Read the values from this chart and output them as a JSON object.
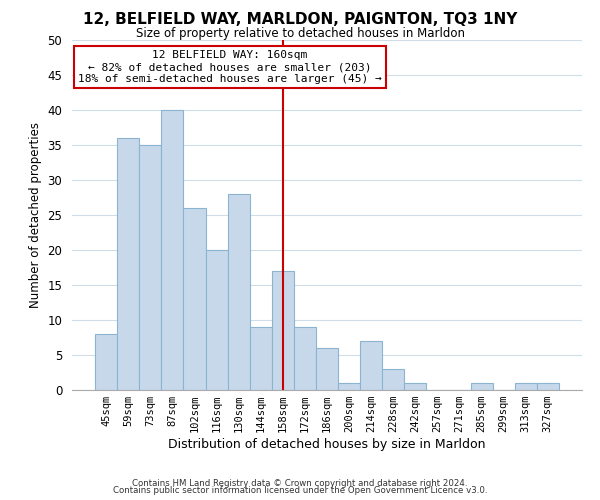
{
  "title": "12, BELFIELD WAY, MARLDON, PAIGNTON, TQ3 1NY",
  "subtitle": "Size of property relative to detached houses in Marldon",
  "xlabel": "Distribution of detached houses by size in Marldon",
  "ylabel": "Number of detached properties",
  "bar_labels": [
    "45sqm",
    "59sqm",
    "73sqm",
    "87sqm",
    "102sqm",
    "116sqm",
    "130sqm",
    "144sqm",
    "158sqm",
    "172sqm",
    "186sqm",
    "200sqm",
    "214sqm",
    "228sqm",
    "242sqm",
    "257sqm",
    "271sqm",
    "285sqm",
    "299sqm",
    "313sqm",
    "327sqm"
  ],
  "bar_values": [
    8,
    36,
    35,
    40,
    26,
    20,
    28,
    9,
    17,
    9,
    6,
    1,
    7,
    3,
    1,
    0,
    0,
    1,
    0,
    1,
    1
  ],
  "bar_color": "#c8d8eb",
  "bar_edge_color": "#8ab4d0",
  "reference_line_index": 8,
  "reference_line_color": "#cc0000",
  "annotation_title": "12 BELFIELD WAY: 160sqm",
  "annotation_line1": "← 82% of detached houses are smaller (203)",
  "annotation_line2": "18% of semi-detached houses are larger (45) →",
  "annotation_box_color": "#ffffff",
  "annotation_box_edge": "#cc0000",
  "ylim": [
    0,
    50
  ],
  "yticks": [
    0,
    5,
    10,
    15,
    20,
    25,
    30,
    35,
    40,
    45,
    50
  ],
  "footer1": "Contains HM Land Registry data © Crown copyright and database right 2024.",
  "footer2": "Contains public sector information licensed under the Open Government Licence v3.0.",
  "background_color": "#ffffff",
  "grid_color": "#d0dde8"
}
